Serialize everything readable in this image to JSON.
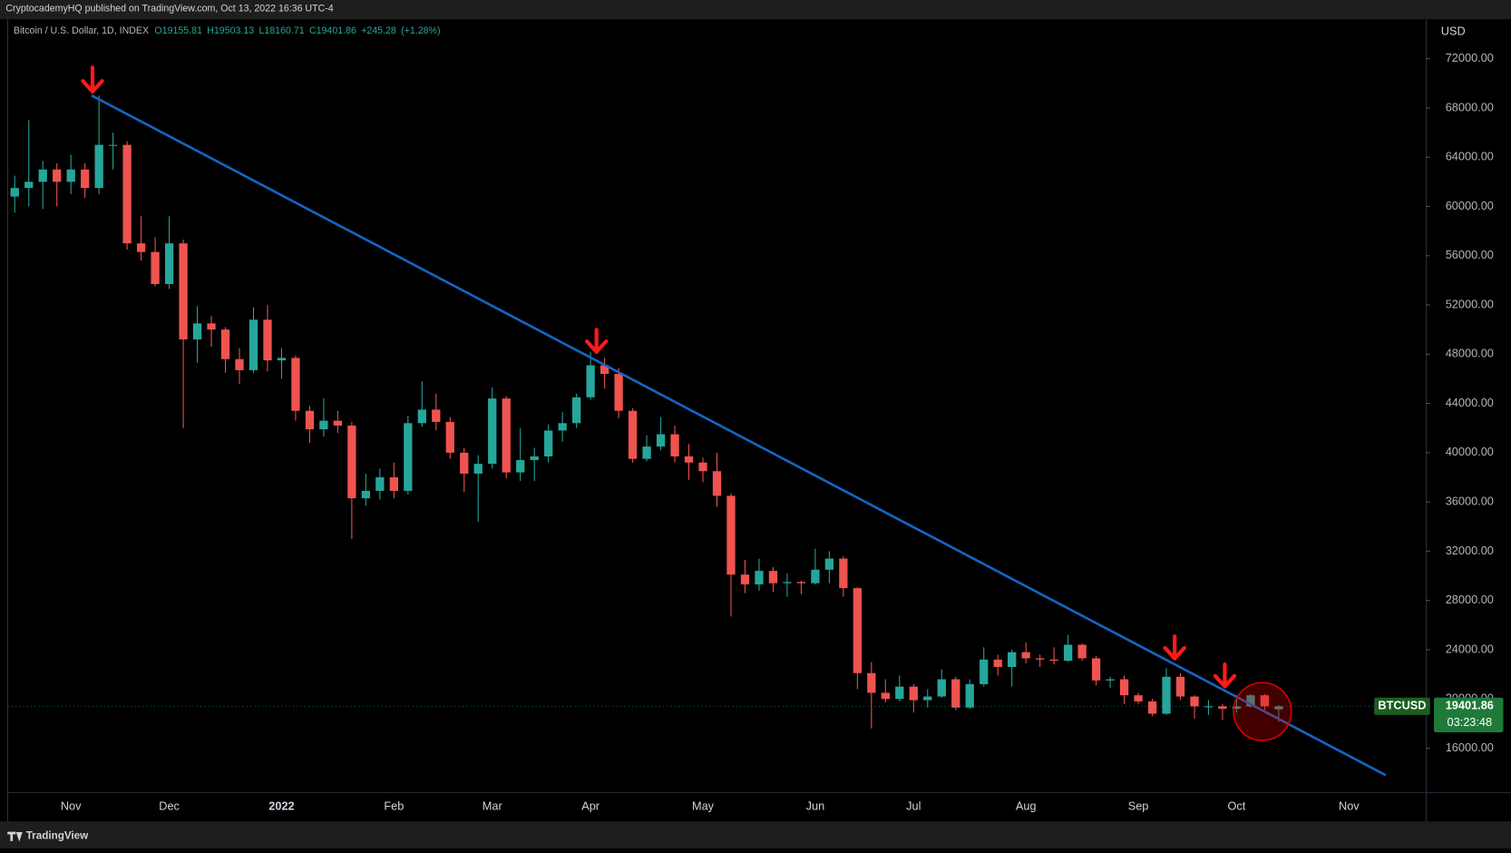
{
  "header": "CryptocademyHQ published on TradingView.com, Oct 13, 2022 16:36 UTC-4",
  "footer": "TradingView",
  "chart_data": {
    "type": "candlestick",
    "symbol_line": "Bitcoin / U.S. Dollar, 1D, INDEX",
    "legend_values": [
      {
        "value": 19155.81,
        "label": "O19155.81"
      },
      {
        "value": 19503.13,
        "label": "H19503.13"
      },
      {
        "value": 18160.71,
        "label": "L18160.71"
      },
      {
        "value": 19401.86,
        "label": "C19401.86"
      },
      {
        "value": 245.28,
        "label": "+245.28"
      },
      {
        "value": 1.28,
        "label": "(+1.28%)"
      }
    ],
    "currency": "USD",
    "ticker": "BTCUSD",
    "countdown": "03:23:48",
    "up_color": "#26a69a",
    "down_color": "#ef5350",
    "categories": [
      null,
      null,
      null,
      null,
      "Nov",
      null,
      null,
      null,
      null,
      null,
      null,
      "Dec",
      null,
      null,
      null,
      null,
      null,
      null,
      null,
      "2022",
      null,
      null,
      null,
      null,
      null,
      null,
      null,
      "Feb",
      null,
      null,
      null,
      null,
      null,
      null,
      "Mar",
      null,
      null,
      null,
      null,
      null,
      null,
      "Apr",
      null,
      null,
      null,
      null,
      null,
      null,
      null,
      "May",
      null,
      null,
      null,
      null,
      null,
      null,
      null,
      "Jun",
      null,
      null,
      null,
      null,
      null,
      null,
      "Jul",
      null,
      null,
      null,
      null,
      null,
      null,
      null,
      "Aug",
      null,
      null,
      null,
      null,
      null,
      null,
      null,
      "Sep",
      null,
      null,
      null,
      null,
      null,
      null,
      "Oct",
      null,
      null,
      null,
      null,
      null,
      null,
      null,
      "Nov",
      null,
      null,
      null,
      null,
      null
    ],
    "open": [
      60800,
      61500,
      62000,
      63000,
      62000,
      63000,
      61500,
      65000,
      65000,
      57000,
      56300,
      53700,
      57000,
      49200,
      50500,
      50000,
      47600,
      46700,
      50800,
      47500,
      47700,
      43400,
      41900,
      42600,
      42200,
      36300,
      36900,
      38000,
      36900,
      42400,
      43500,
      42500,
      40000,
      38300,
      39100,
      44400,
      38400,
      39400,
      39700,
      41800,
      42400,
      44500,
      47100,
      46400,
      43400,
      39500,
      40500,
      41500,
      39700,
      39200,
      38500,
      36500,
      30100,
      29300,
      30400,
      29400,
      29500,
      29400,
      30500,
      31400,
      29000,
      22100,
      20500,
      20000,
      21000,
      19900,
      20200,
      21600,
      19300,
      21200,
      23200,
      22600,
      23800,
      23300,
      23200,
      23100,
      24400,
      23300,
      21500,
      21600,
      20300,
      19800,
      18800,
      21800,
      20200,
      19400,
      19400,
      19200,
      19400,
      20300,
      19155.81,
      null,
      null,
      null,
      null,
      null,
      null,
      null,
      null,
      null,
      null
    ],
    "high": [
      62500,
      67000,
      63700,
      63500,
      64200,
      63500,
      69000,
      66000,
      65300,
      59200,
      57500,
      59200,
      57300,
      51900,
      51100,
      50200,
      48500,
      51800,
      52000,
      48500,
      47900,
      43800,
      44400,
      43400,
      42500,
      38300,
      38700,
      39200,
      43000,
      45800,
      44800,
      42900,
      40400,
      39800,
      45300,
      44600,
      42000,
      40400,
      42300,
      43300,
      44800,
      48200,
      47700,
      46900,
      43600,
      41400,
      42900,
      42200,
      40700,
      39600,
      40000,
      36700,
      31300,
      31400,
      30700,
      30200,
      29600,
      32200,
      32000,
      31600,
      29100,
      23000,
      21600,
      21900,
      21200,
      20800,
      22400,
      21800,
      21600,
      24200,
      23600,
      24000,
      24600,
      23600,
      24200,
      25200,
      24500,
      23500,
      21800,
      21900,
      20500,
      20000,
      22500,
      22100,
      20300,
      19900,
      19600,
      20300,
      20400,
      20400,
      19503.13,
      null,
      null,
      null,
      null,
      null,
      null,
      null,
      null,
      null,
      null
    ],
    "low": [
      59500,
      60000,
      59800,
      60000,
      61000,
      60700,
      61000,
      63000,
      56500,
      55600,
      53500,
      53300,
      42000,
      47300,
      48600,
      46500,
      45600,
      46500,
      46600,
      46000,
      42600,
      40800,
      41300,
      41600,
      33000,
      35700,
      36200,
      36300,
      36600,
      42100,
      41800,
      39500,
      36800,
      34400,
      38700,
      37900,
      37700,
      37700,
      39200,
      40900,
      42000,
      44300,
      45200,
      42800,
      39200,
      39300,
      40200,
      39200,
      37800,
      37600,
      35600,
      26700,
      28600,
      28800,
      28700,
      28300,
      28500,
      29300,
      29400,
      28300,
      20800,
      17600,
      19700,
      19800,
      18900,
      19300,
      20100,
      19100,
      19200,
      21000,
      21900,
      21000,
      22900,
      22600,
      22800,
      23000,
      23100,
      21100,
      20900,
      19600,
      19600,
      18600,
      18700,
      19900,
      18400,
      18700,
      18300,
      18900,
      19300,
      19100,
      18160.71,
      null,
      null,
      null,
      null,
      null,
      null,
      null,
      null,
      null,
      null
    ],
    "close": [
      61500,
      62000,
      63000,
      62000,
      63000,
      61500,
      65000,
      65000,
      57000,
      56300,
      53700,
      57000,
      49200,
      50500,
      50000,
      47600,
      46700,
      50800,
      47500,
      47700,
      43400,
      41900,
      42600,
      42200,
      36300,
      36900,
      38000,
      36900,
      42400,
      43500,
      42500,
      40000,
      38300,
      39100,
      44400,
      38400,
      39400,
      39700,
      41800,
      42400,
      44500,
      47100,
      46400,
      43400,
      39500,
      40500,
      41500,
      39700,
      39200,
      38500,
      36500,
      30100,
      29300,
      30400,
      29400,
      29500,
      29400,
      30500,
      31400,
      29000,
      22100,
      20500,
      20000,
      21000,
      19900,
      20200,
      21600,
      19300,
      21200,
      23200,
      22600,
      23800,
      23300,
      23200,
      23100,
      24400,
      23300,
      21500,
      21600,
      20300,
      19800,
      18800,
      21800,
      20200,
      19400,
      19400,
      19200,
      19400,
      20300,
      19400,
      19401.86,
      null,
      null,
      null,
      null,
      null,
      null,
      null,
      null,
      null,
      null
    ],
    "ylim": [
      12400,
      75200
    ],
    "yticks": [
      {
        "value": 16000,
        "label": "16000.00"
      },
      {
        "value": 20000,
        "label": "20000.00"
      },
      {
        "value": 24000,
        "label": "24000.00"
      },
      {
        "value": 28000,
        "label": "28000.00"
      },
      {
        "value": 32000,
        "label": "32000.00"
      },
      {
        "value": 36000,
        "label": "36000.00"
      },
      {
        "value": 40000,
        "label": "40000.00"
      },
      {
        "value": 44000,
        "label": "44000.00"
      },
      {
        "value": 48000,
        "label": "48000.00"
      },
      {
        "value": 52000,
        "label": "52000.00"
      },
      {
        "value": 56000,
        "label": "56000.00"
      },
      {
        "value": 60000,
        "label": "60000.00"
      },
      {
        "value": 64000,
        "label": "64000.00"
      },
      {
        "value": 68000,
        "label": "68000.00"
      },
      {
        "value": 72000,
        "label": "72000.00"
      }
    ],
    "grid": false
  }
}
